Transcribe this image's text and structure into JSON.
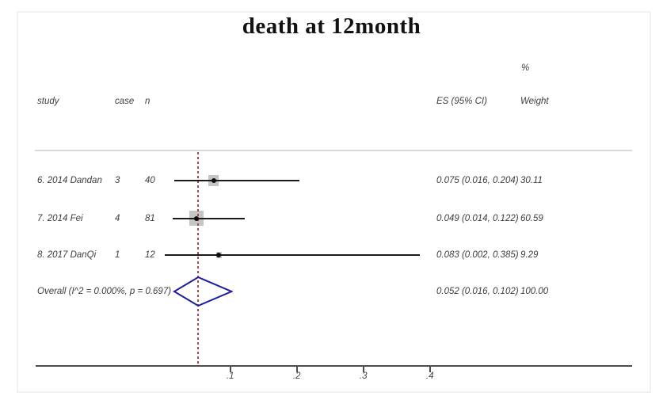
{
  "title": "death at 12month",
  "headers": {
    "study": "study",
    "case": "case",
    "n": "n",
    "es_ci": "ES (95% CI)",
    "weight": "Weight",
    "percent": "%"
  },
  "chart_data": {
    "type": "forest",
    "title": "death at 12month",
    "xlabel": "",
    "ylabel": "",
    "x_ticks": [
      {
        "label": ".1",
        "value": 0.1
      },
      {
        "label": ".2",
        "value": 0.2
      },
      {
        "label": ".3",
        "value": 0.3
      },
      {
        "label": ".4",
        "value": 0.4
      }
    ],
    "studies": [
      {
        "study": "6. 2014 Dandan",
        "case": "3",
        "n": "40",
        "es": 0.075,
        "ci_lower": 0.016,
        "ci_upper": 0.204,
        "es_ci_label": "0.075 (0.016, 0.204)",
        "weight": 30.11,
        "weight_label": "30.11"
      },
      {
        "study": "7. 2014 Fei",
        "case": "4",
        "n": "81",
        "es": 0.049,
        "ci_lower": 0.014,
        "ci_upper": 0.122,
        "es_ci_label": "0.049 (0.014, 0.122)",
        "weight": 60.59,
        "weight_label": "60.59"
      },
      {
        "study": "8. 2017 DanQi",
        "case": "1",
        "n": "12",
        "es": 0.083,
        "ci_lower": 0.002,
        "ci_upper": 0.385,
        "es_ci_label": "0.083 (0.002, 0.385)",
        "weight": 9.29,
        "weight_label": "9.29"
      }
    ],
    "overall": {
      "label": "Overall  (I^2 = 0.000%, p = 0.697)",
      "es": 0.052,
      "ci_lower": 0.016,
      "ci_upper": 0.102,
      "es_ci_label": "0.052 (0.016, 0.102)",
      "weight": 100.0,
      "weight_label": "100.00",
      "heterogeneity_i2": "0.000%",
      "p_value": "0.697"
    },
    "reference_line_value": 0.052,
    "legend": "none",
    "grid": "off",
    "colors": {
      "diamond": "#1e1e9c",
      "reference_line": "#a64a4a",
      "marker_fill": "#c5c5c5",
      "ci_line": "#1a1a1a",
      "axis": "#4d4d4d"
    }
  }
}
